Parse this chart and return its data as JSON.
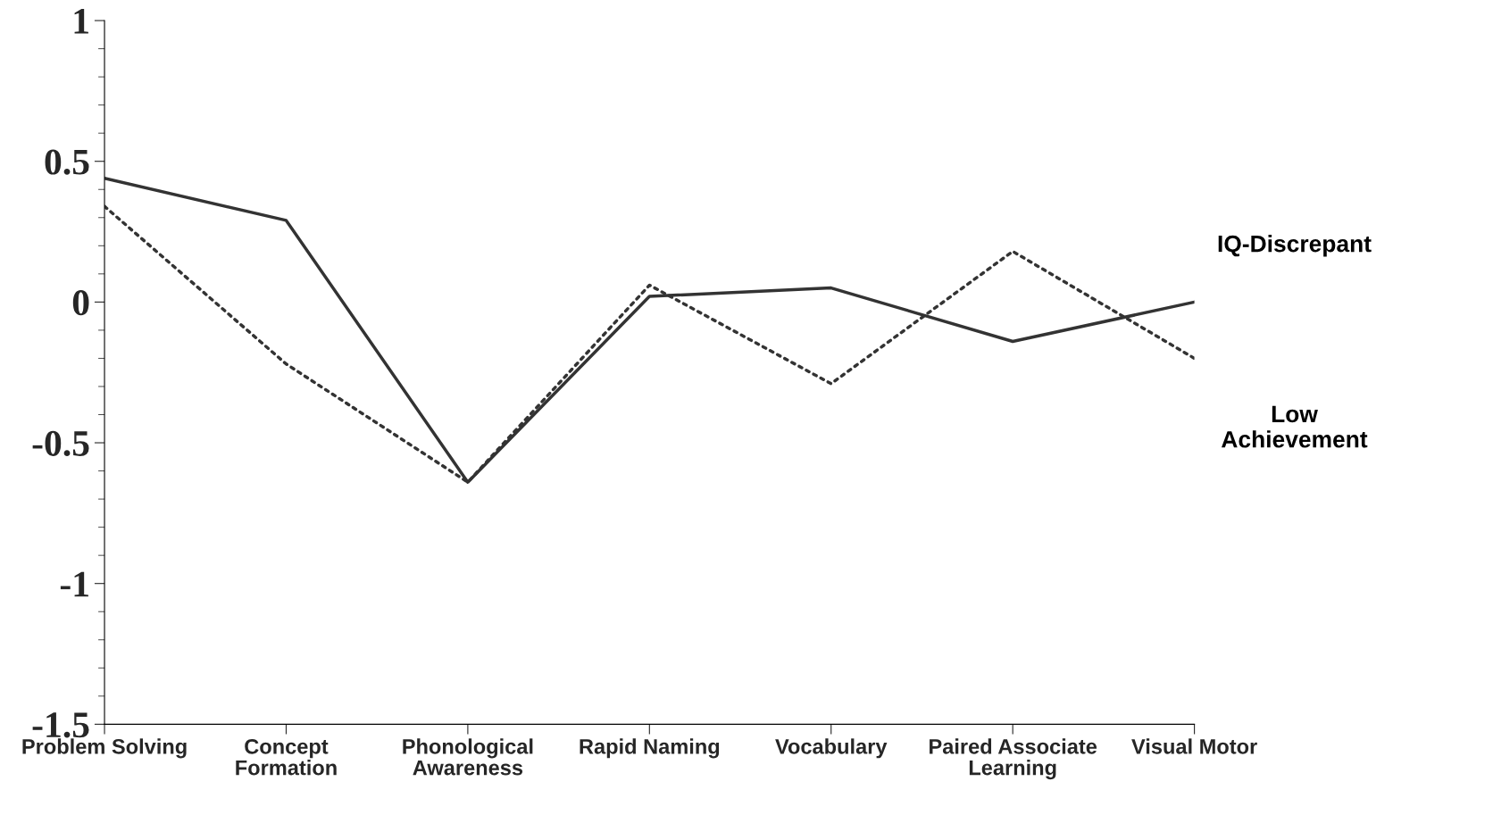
{
  "chart_data": {
    "type": "line",
    "categories": [
      "Problem Solving",
      "Concept\nFormation",
      "Phonological\nAwareness",
      "Rapid Naming",
      "Vocabulary",
      "Paired Associate\nLearning",
      "Visual Motor"
    ],
    "series": [
      {
        "name": "IQ-Discrepant",
        "color": "#333333",
        "line_style": "solid",
        "values": [
          0.44,
          0.29,
          -0.64,
          0.02,
          0.05,
          -0.14,
          0.0
        ]
      },
      {
        "name": "Low\nAchievement",
        "color": "#333333",
        "line_style": "dotted",
        "values": [
          0.34,
          -0.22,
          -0.64,
          0.06,
          -0.29,
          0.18,
          -0.2
        ]
      }
    ],
    "ylim": [
      -1.5,
      1
    ],
    "yticks": [
      -1.5,
      -1,
      -0.5,
      0,
      0.5,
      1
    ],
    "grid": false,
    "legend": false,
    "marker": "none"
  }
}
